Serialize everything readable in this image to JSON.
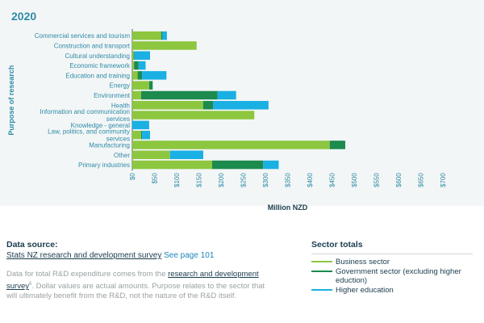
{
  "chart_data": {
    "type": "bar",
    "orientation": "horizontal",
    "stacked": true,
    "title": "2020",
    "xlabel": "Million NZD",
    "ylabel": "Purpose of research",
    "xlim": [
      0,
      700
    ],
    "xticks": [
      0,
      50,
      100,
      150,
      200,
      250,
      300,
      350,
      400,
      450,
      500,
      550,
      600,
      650,
      700
    ],
    "xtick_labels": [
      "$0",
      "$50",
      "$100",
      "$150",
      "$200",
      "$250",
      "$300",
      "$350",
      "$400",
      "$450",
      "$500",
      "$550",
      "$600",
      "$650",
      "$700"
    ],
    "categories": [
      [
        "Commercial services and tourism"
      ],
      [
        "Construction and transport"
      ],
      [
        "Cultural understanding"
      ],
      [
        "Economic framework"
      ],
      [
        "Education and training"
      ],
      [
        "Energy"
      ],
      [
        "Environment"
      ],
      [
        "Health"
      ],
      [
        "Information and communication",
        "services"
      ],
      [
        "Knowledge - general"
      ],
      [
        "Law, politics, and community",
        "services"
      ],
      [
        "Manufacturing"
      ],
      [
        "Other"
      ],
      [
        "Primary industries"
      ]
    ],
    "series": [
      {
        "name": "Business sector",
        "color": "#8dc63f",
        "values": [
          65,
          145,
          3,
          4,
          12,
          38,
          20,
          160,
          275,
          0,
          20,
          445,
          85,
          180
        ]
      },
      {
        "name": "Government sector (excluding higher eduction)",
        "color": "#1d8a4e",
        "values": [
          3,
          0,
          2,
          10,
          10,
          8,
          172,
          22,
          0,
          0,
          2,
          35,
          0,
          115
        ]
      },
      {
        "name": "Higher education",
        "color": "#1ab0e3",
        "values": [
          10,
          0,
          35,
          16,
          55,
          0,
          42,
          125,
          0,
          38,
          18,
          0,
          75,
          35
        ]
      }
    ],
    "grid": false,
    "legend_position": "bottom-right"
  },
  "header": {
    "year": "2020"
  },
  "source": {
    "title": "Data source:",
    "link_text": "Stats NZ research and development survey",
    "page_ref": "See page 101",
    "note_part1": "Data for total R&D expenditure comes from the ",
    "note_link": "research and development survey",
    "note_sup": "6",
    "note_part2": ". Dollar values are actual amounts. Purpose relates to the sector that will ultimately benefit from the R&D, not the nature of the R&D itself."
  },
  "legend": {
    "title": "Sector totals",
    "items": [
      {
        "label": "Business sector",
        "color": "#8dc63f"
      },
      {
        "label": "Government sector (excluding higher eduction)",
        "color": "#1d8a4e"
      },
      {
        "label": "Higher education",
        "color": "#1ab0e3"
      }
    ]
  }
}
